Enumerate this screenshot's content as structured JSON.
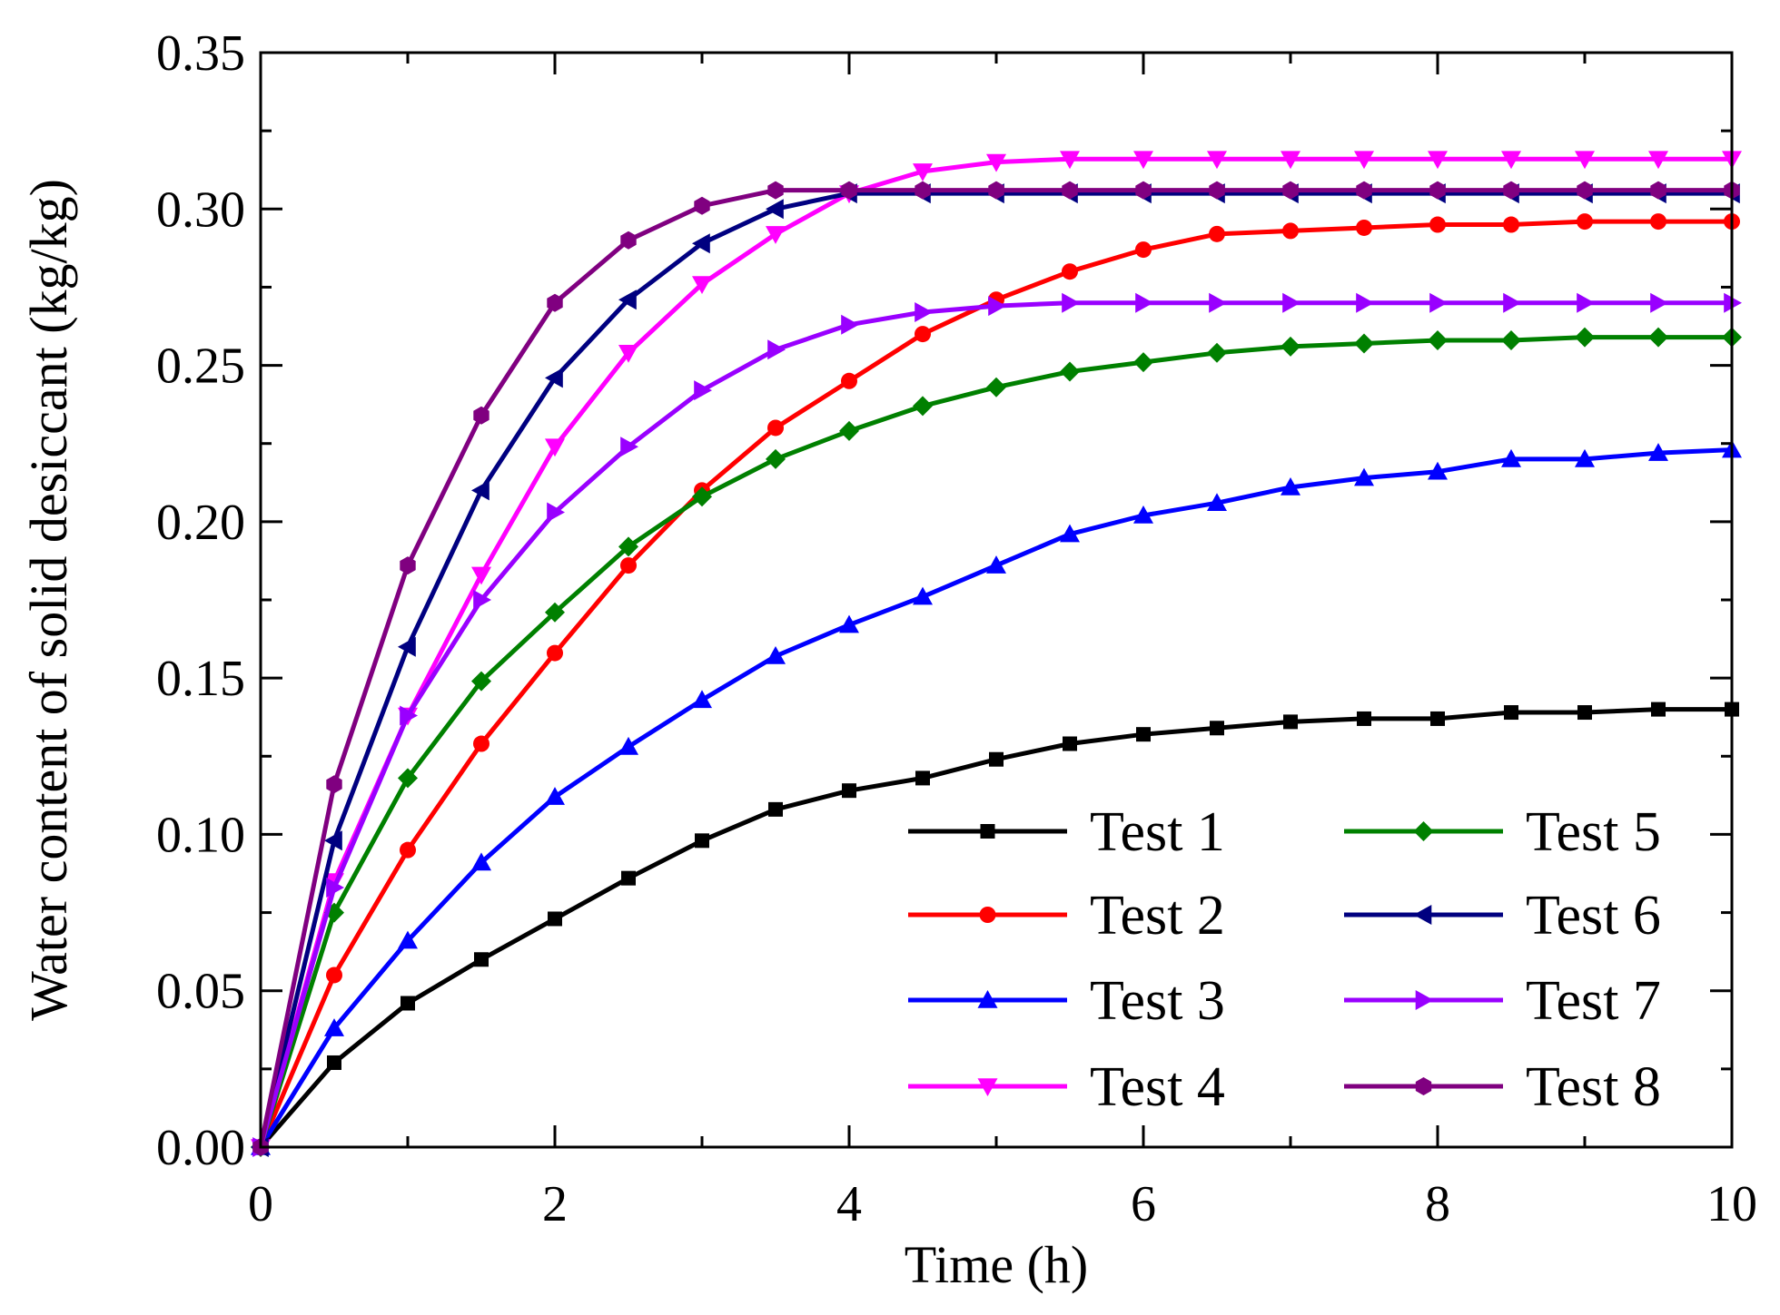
{
  "chart_data": {
    "type": "line",
    "title": "",
    "xlabel": "Time (h)",
    "ylabel": "Water content of solid desiccant (kg/kg)",
    "xlim": [
      0,
      10
    ],
    "ylim": [
      0,
      0.35
    ],
    "xticks": [
      0,
      2,
      4,
      6,
      8,
      10
    ],
    "xtick_labels": [
      "0",
      "2",
      "4",
      "6",
      "8",
      "10"
    ],
    "yticks": [
      0,
      0.05,
      0.1,
      0.15,
      0.2,
      0.25,
      0.3,
      0.35
    ],
    "ytick_labels": [
      "0.00",
      "0.05",
      "0.10",
      "0.15",
      "0.20",
      "0.25",
      "0.30",
      "0.35"
    ],
    "grid": false,
    "legend_position": "bottom-right",
    "x": [
      0,
      0.5,
      1,
      1.5,
      2,
      2.5,
      3,
      3.5,
      4,
      4.5,
      5,
      5.5,
      6,
      6.5,
      7,
      7.5,
      8,
      8.5,
      9,
      9.5,
      10
    ],
    "series": [
      {
        "name": "Test 1",
        "color": "#000000",
        "marker": "square",
        "values": [
          0,
          0.027,
          0.046,
          0.06,
          0.073,
          0.086,
          0.098,
          0.108,
          0.114,
          0.118,
          0.124,
          0.129,
          0.132,
          0.134,
          0.136,
          0.137,
          0.137,
          0.139,
          0.139,
          0.14,
          0.14
        ]
      },
      {
        "name": "Test 2",
        "color": "#ff0000",
        "marker": "circle",
        "values": [
          0,
          0.055,
          0.095,
          0.129,
          0.158,
          0.186,
          0.21,
          0.23,
          0.245,
          0.26,
          0.271,
          0.28,
          0.287,
          0.292,
          0.293,
          0.294,
          0.295,
          0.295,
          0.296,
          0.296,
          0.296
        ]
      },
      {
        "name": "Test 3",
        "color": "#0000ff",
        "marker": "triangle-up",
        "values": [
          0,
          0.038,
          0.066,
          0.091,
          0.112,
          0.128,
          0.143,
          0.157,
          0.167,
          0.176,
          0.186,
          0.196,
          0.202,
          0.206,
          0.211,
          0.214,
          0.216,
          0.22,
          0.22,
          0.222,
          0.223
        ]
      },
      {
        "name": "Test 4",
        "color": "#ff00ff",
        "marker": "triangle-down",
        "values": [
          0,
          0.085,
          0.138,
          0.183,
          0.224,
          0.254,
          0.276,
          0.292,
          0.305,
          0.312,
          0.315,
          0.316,
          0.316,
          0.316,
          0.316,
          0.316,
          0.316,
          0.316,
          0.316,
          0.316,
          0.316
        ]
      },
      {
        "name": "Test 5",
        "color": "#008000",
        "marker": "diamond",
        "values": [
          0,
          0.075,
          0.118,
          0.149,
          0.171,
          0.192,
          0.208,
          0.22,
          0.229,
          0.237,
          0.243,
          0.248,
          0.251,
          0.254,
          0.256,
          0.257,
          0.258,
          0.258,
          0.259,
          0.259,
          0.259
        ]
      },
      {
        "name": "Test 6",
        "color": "#000080",
        "marker": "triangle-left",
        "values": [
          0,
          0.098,
          0.16,
          0.21,
          0.246,
          0.271,
          0.289,
          0.3,
          0.305,
          0.305,
          0.305,
          0.305,
          0.305,
          0.305,
          0.305,
          0.305,
          0.305,
          0.305,
          0.305,
          0.305,
          0.305
        ]
      },
      {
        "name": "Test 7",
        "color": "#9900ff",
        "marker": "triangle-right",
        "values": [
          0,
          0.083,
          0.138,
          0.175,
          0.203,
          0.224,
          0.242,
          0.255,
          0.263,
          0.267,
          0.269,
          0.27,
          0.27,
          0.27,
          0.27,
          0.27,
          0.27,
          0.27,
          0.27,
          0.27,
          0.27
        ]
      },
      {
        "name": "Test 8",
        "color": "#800080",
        "marker": "hexagon",
        "values": [
          0,
          0.116,
          0.186,
          0.234,
          0.27,
          0.29,
          0.301,
          0.306,
          0.306,
          0.306,
          0.306,
          0.306,
          0.306,
          0.306,
          0.306,
          0.306,
          0.306,
          0.306,
          0.306,
          0.306,
          0.306
        ]
      }
    ]
  }
}
